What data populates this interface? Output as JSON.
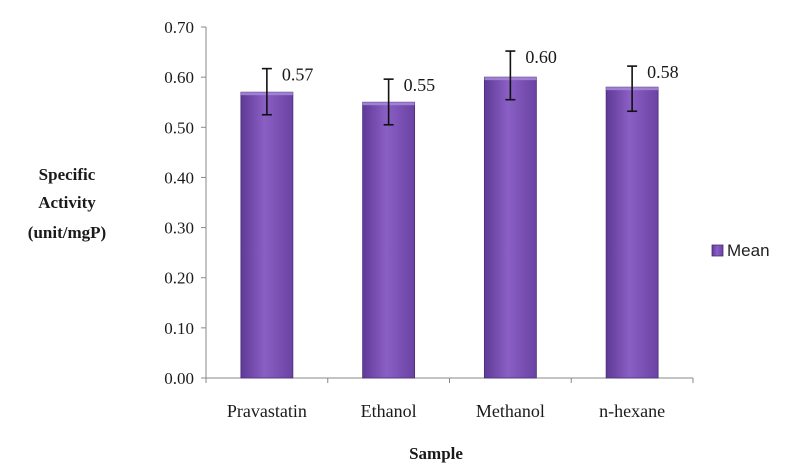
{
  "chart_data": {
    "type": "bar",
    "categories": [
      "Pravastatin",
      "Ethanol",
      "Methanol",
      "n-hexane"
    ],
    "series": [
      {
        "name": "Mean",
        "values": [
          0.57,
          0.55,
          0.6,
          0.58
        ],
        "data_labels": [
          "0.57",
          "0.55",
          "0.60",
          "0.58"
        ],
        "error_low": [
          0.525,
          0.505,
          0.555,
          0.532
        ],
        "error_high": [
          0.617,
          0.596,
          0.652,
          0.622
        ],
        "color": "#7b4fb3"
      }
    ],
    "ylim": [
      0,
      0.7
    ],
    "yticks": [
      "0.00",
      "0.10",
      "0.20",
      "0.30",
      "0.40",
      "0.50",
      "0.60",
      "0.70"
    ],
    "ylabel_lines": [
      "Specific",
      "Activity",
      "(unit/mgP)"
    ],
    "xlabel": "Sample",
    "legend": {
      "position": "right",
      "label": "Mean"
    },
    "grid": false
  }
}
